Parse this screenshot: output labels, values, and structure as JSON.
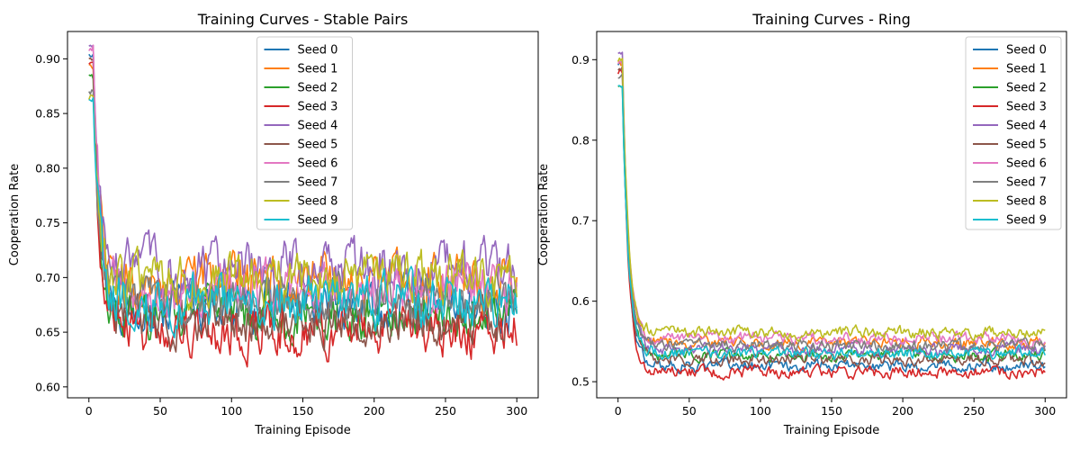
{
  "chart_data": [
    {
      "type": "line",
      "title": "Training Curves - Stable Pairs",
      "xlabel": "Training Episode",
      "ylabel": "Cooperation Rate",
      "xlim": [
        -15,
        315
      ],
      "ylim": [
        0.59,
        0.925
      ],
      "xticks": [
        0,
        50,
        100,
        150,
        200,
        250,
        300
      ],
      "xtick_labels": [
        "0",
        "50",
        "100",
        "150",
        "200",
        "250",
        "300"
      ],
      "yticks": [
        0.6,
        0.65,
        0.7,
        0.75,
        0.8,
        0.85,
        0.9
      ],
      "ytick_labels": [
        "0.60",
        "0.65",
        "0.70",
        "0.75",
        "0.80",
        "0.85",
        "0.90"
      ],
      "grid": false,
      "legend_position": "top-center",
      "x": [
        0,
        300
      ],
      "series": [
        {
          "name": "Seed 0",
          "color": "#1f77b4",
          "start": 0.905,
          "plateau": 0.675,
          "noise": 0.018
        },
        {
          "name": "Seed 1",
          "color": "#ff7f0e",
          "start": 0.893,
          "plateau": 0.695,
          "noise": 0.02
        },
        {
          "name": "Seed 2",
          "color": "#2ca02c",
          "start": 0.883,
          "plateau": 0.667,
          "noise": 0.017
        },
        {
          "name": "Seed 3",
          "color": "#d62728",
          "start": 0.896,
          "plateau": 0.652,
          "noise": 0.018
        },
        {
          "name": "Seed 4",
          "color": "#9467bd",
          "start": 0.91,
          "plateau": 0.708,
          "noise": 0.02
        },
        {
          "name": "Seed 5",
          "color": "#8c564b",
          "start": 0.9,
          "plateau": 0.66,
          "noise": 0.017
        },
        {
          "name": "Seed 6",
          "color": "#e377c2",
          "start": 0.91,
          "plateau": 0.69,
          "noise": 0.018
        },
        {
          "name": "Seed 7",
          "color": "#7f7f7f",
          "start": 0.87,
          "plateau": 0.682,
          "noise": 0.017
        },
        {
          "name": "Seed 8",
          "color": "#bcbd22",
          "start": 0.865,
          "plateau": 0.698,
          "noise": 0.018
        },
        {
          "name": "Seed 9",
          "color": "#17becf",
          "start": 0.862,
          "plateau": 0.678,
          "noise": 0.018
        }
      ]
    },
    {
      "type": "line",
      "title": "Training Curves - Ring",
      "xlabel": "Training Episode",
      "ylabel": "Cooperation Rate",
      "xlim": [
        -15,
        315
      ],
      "ylim": [
        0.48,
        0.935
      ],
      "xticks": [
        0,
        50,
        100,
        150,
        200,
        250,
        300
      ],
      "xtick_labels": [
        "0",
        "50",
        "100",
        "150",
        "200",
        "250",
        "300"
      ],
      "yticks": [
        0.5,
        0.6,
        0.7,
        0.8,
        0.9
      ],
      "ytick_labels": [
        "0.5",
        "0.6",
        "0.7",
        "0.8",
        "0.9"
      ],
      "grid": false,
      "legend_position": "top-right",
      "x": [
        0,
        300
      ],
      "series": [
        {
          "name": "Seed 0",
          "color": "#1f77b4",
          "start": 0.895,
          "plateau": 0.52,
          "noise": 0.006
        },
        {
          "name": "Seed 1",
          "color": "#ff7f0e",
          "start": 0.895,
          "plateau": 0.548,
          "noise": 0.006
        },
        {
          "name": "Seed 2",
          "color": "#2ca02c",
          "start": 0.868,
          "plateau": 0.533,
          "noise": 0.006
        },
        {
          "name": "Seed 3",
          "color": "#d62728",
          "start": 0.885,
          "plateau": 0.512,
          "noise": 0.006
        },
        {
          "name": "Seed 4",
          "color": "#9467bd",
          "start": 0.91,
          "plateau": 0.54,
          "noise": 0.006
        },
        {
          "name": "Seed 5",
          "color": "#8c564b",
          "start": 0.89,
          "plateau": 0.528,
          "noise": 0.006
        },
        {
          "name": "Seed 6",
          "color": "#e377c2",
          "start": 0.895,
          "plateau": 0.553,
          "noise": 0.006
        },
        {
          "name": "Seed 7",
          "color": "#7f7f7f",
          "start": 0.88,
          "plateau": 0.545,
          "noise": 0.006
        },
        {
          "name": "Seed 8",
          "color": "#bcbd22",
          "start": 0.9,
          "plateau": 0.561,
          "noise": 0.006
        },
        {
          "name": "Seed 9",
          "color": "#17becf",
          "start": 0.865,
          "plateau": 0.535,
          "noise": 0.006
        }
      ]
    }
  ]
}
